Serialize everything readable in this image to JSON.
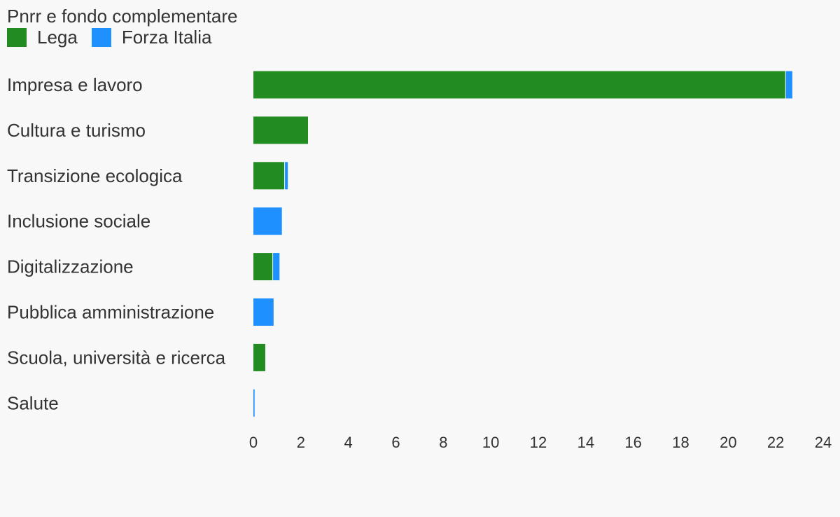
{
  "chart_data": {
    "type": "bar",
    "orientation": "horizontal",
    "stacked": true,
    "title": "Pnrr e fondo complementare",
    "categories": [
      "Impresa e lavoro",
      "Cultura e turismo",
      "Transizione ecologica",
      "Inclusione sociale",
      "Digitalizzazione",
      "Pubblica amministrazione",
      "Scuola, università e ricerca",
      "Salute"
    ],
    "series": [
      {
        "name": "Lega",
        "color": "#228B22",
        "values": [
          22.4,
          2.3,
          1.3,
          0,
          0.8,
          0,
          0.5,
          0
        ]
      },
      {
        "name": "Forza Italia",
        "color": "#1E90FF",
        "values": [
          0.3,
          0,
          0.15,
          1.2,
          0.3,
          0.85,
          0,
          0.05
        ]
      }
    ],
    "x_ticks": [
      "0",
      "2",
      "4",
      "6",
      "8",
      "10",
      "12",
      "14",
      "16",
      "18",
      "20",
      "22",
      "24"
    ],
    "xlim": [
      0,
      24
    ],
    "grid": false,
    "legend_position": "top-left"
  }
}
